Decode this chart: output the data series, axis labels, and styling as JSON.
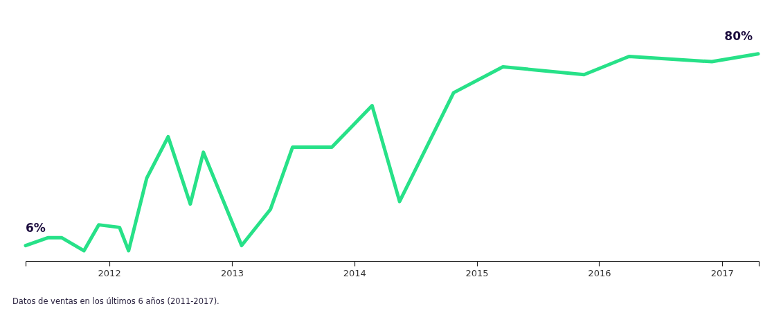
{
  "chart_data": {
    "type": "line",
    "x": [
      "2011-04-27",
      "2011-07-02",
      "2011-08-13",
      "2011-10-18",
      "2011-12-01",
      "2012-02-01",
      "2012-02-28",
      "2012-04-22",
      "2012-06-25",
      "2012-08-30",
      "2012-10-08",
      "2013-01-30",
      "2013-04-26",
      "2013-07-01",
      "2013-10-26",
      "2014-02-23",
      "2014-05-16",
      "2014-10-24",
      "2015-03-20",
      "2015-11-17",
      "2016-03-30",
      "2016-12-02",
      "2017-04-19"
    ],
    "series": [
      {
        "color": "#27e188",
        "values": [
          6,
          9,
          9,
          4,
          14,
          13,
          4,
          32,
          48,
          22,
          42,
          6,
          20,
          44,
          44,
          60,
          23,
          65,
          75,
          72,
          79,
          77,
          80
        ],
        "value_labels": [
          "6%",
          null,
          null,
          null,
          null,
          null,
          null,
          null,
          null,
          null,
          null,
          null,
          null,
          null,
          null,
          null,
          null,
          null,
          null,
          null,
          null,
          null,
          "80%"
        ]
      }
    ],
    "xlim": [
      "2011-04-27",
      "2017-04-21"
    ],
    "xticks": [
      {
        "value": "2011-04-27",
        "label": null
      },
      "2012",
      "2013",
      "2014",
      "2015",
      "2016",
      "2017",
      {
        "value": "2017-04-21",
        "label": null
      }
    ],
    "ylim": [
      0,
      100
    ],
    "tick_labels": "x",
    "grid": false,
    "marker": "none",
    "line_style": "solid",
    "annotations": [
      "Datos de ventas en los últimos 6 años (2011-2017)."
    ]
  }
}
